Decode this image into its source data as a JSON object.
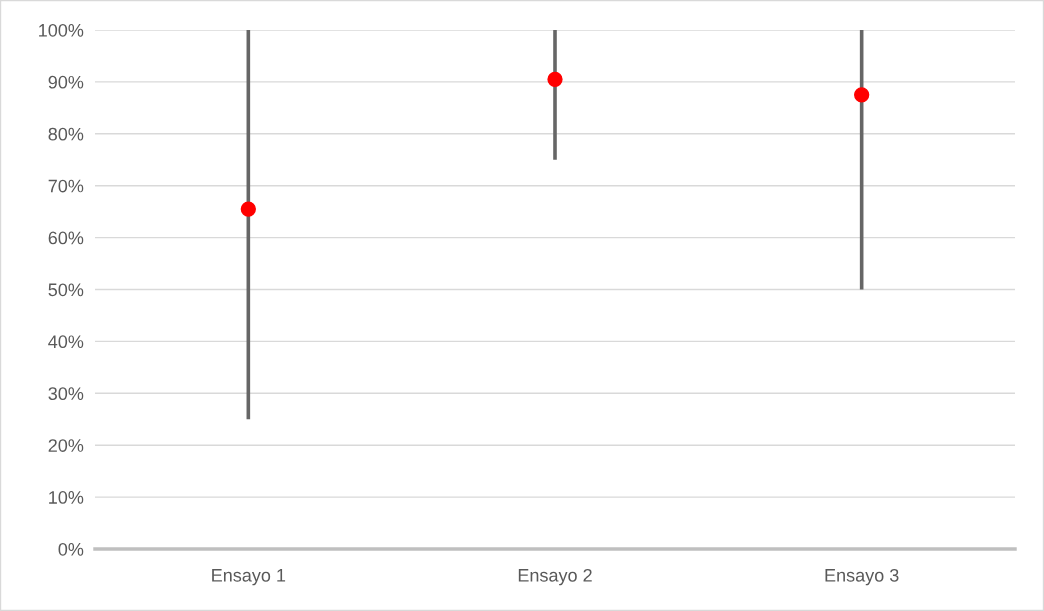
{
  "chart_data": {
    "type": "scatter",
    "categories": [
      "Ensayo 1",
      "Ensayo 2",
      "Ensayo 3"
    ],
    "series": [
      {
        "color": "#ff0000",
        "values": [
          65.5,
          90.5,
          87.5
        ],
        "errors": [
          [
            25,
            100
          ],
          [
            75,
            100
          ],
          [
            50,
            100
          ]
        ]
      }
    ],
    "marker": "circle",
    "ylim": [
      0,
      100
    ],
    "yticks": [
      {
        "value": 0,
        "label": "0%"
      },
      {
        "value": 10,
        "label": "10%"
      },
      {
        "value": 20,
        "label": "20%"
      },
      {
        "value": 30,
        "label": "30%"
      },
      {
        "value": 40,
        "label": "40%"
      },
      {
        "value": 50,
        "label": "50%"
      },
      {
        "value": 60,
        "label": "60%"
      },
      {
        "value": 70,
        "label": "70%"
      },
      {
        "value": 80,
        "label": "80%"
      },
      {
        "value": 90,
        "label": "90%"
      },
      {
        "value": 100,
        "label": "100%"
      }
    ],
    "grid": "y"
  }
}
